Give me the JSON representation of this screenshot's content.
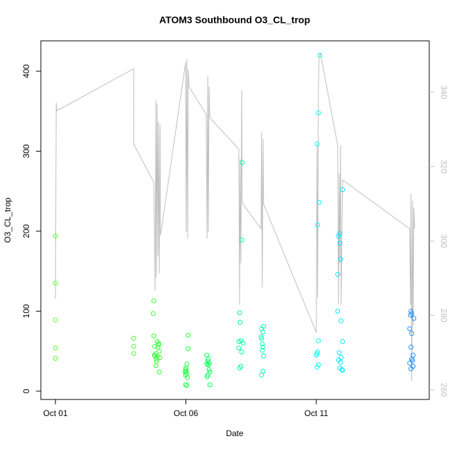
{
  "chart_data": {
    "type": "scatter",
    "title": "ATOM3 Southbound O3_CL_trop",
    "x_label": "Date",
    "y_label": "O3_CL_trop",
    "xlim": [
      -0.56,
      14.33
    ],
    "xticks": [
      {
        "value": 0,
        "label": "Oct 01"
      },
      {
        "value": 5,
        "label": "Oct 06"
      },
      {
        "value": 10,
        "label": "Oct 11"
      }
    ],
    "ylim": [
      -10.4,
      438
    ],
    "yticks": [
      0,
      100,
      200,
      300,
      400
    ],
    "y2lim": [
      257.4,
      353.8
    ],
    "y2ticks": [
      260,
      280,
      300,
      320,
      340
    ],
    "y2_color": "#bebebe",
    "series": [
      {
        "mode": "line",
        "axis": "y2",
        "color": "#bebebe",
        "x": [
          0,
          0.03,
          0.05,
          3.0,
          3.0,
          3.77,
          3.82,
          3.85,
          3.87,
          3.9,
          3.93,
          3.95,
          3.98,
          4.01,
          4.03,
          4.99,
          5.01,
          5.04,
          5.07,
          5.09,
          5.12,
          5.78,
          5.81,
          5.84,
          5.86,
          5.89,
          5.92,
          7.03,
          7.06,
          7.08,
          7.11,
          7.14,
          7.16,
          7.19,
          7.88,
          7.9,
          7.93,
          7.96,
          7.98,
          10.0,
          10.03,
          10.05,
          10.08,
          10.11,
          10.16,
          10.82,
          10.85,
          10.88,
          10.9,
          10.93,
          10.95,
          11.01,
          13.58,
          13.61,
          13.63,
          13.66,
          13.69,
          13.71,
          13.74,
          13.77
        ],
        "values": [
          284.4,
          337.2,
          335.0,
          346.3,
          326.0,
          315.8,
          286.6,
          337.8,
          290.3,
          336.8,
          295.9,
          332.2,
          291.3,
          331.3,
          301.5,
          348.0,
          302.4,
          348.9,
          300.6,
          346.1,
          341.5,
          334.0,
          300.6,
          344.3,
          302.4,
          341.5,
          333.1,
          324.7,
          282.9,
          322.0,
          294.0,
          340.6,
          310.8,
          309.9,
          303.3,
          329.4,
          287.5,
          327.5,
          309.9,
          275.4,
          326.0,
          284.7,
          340.6,
          349.9,
          350.4,
          325.7,
          282.9,
          318.2,
          294.0,
          325.7,
          282.9,
          316.4,
          303.3,
          282.9,
          312.7,
          262.4,
          310.8,
          277.3,
          308.9,
          303.3
        ]
      },
      {
        "mode": "points",
        "color": "#5cff2e",
        "x": [
          0,
          0,
          0,
          0,
          0
        ],
        "values": [
          194,
          135,
          89,
          54,
          41
        ]
      },
      {
        "mode": "points",
        "color": "#4cff33",
        "x": [
          3.0,
          3.0,
          3.0
        ],
        "values": [
          66,
          56,
          47
        ]
      },
      {
        "mode": "points",
        "color": "#33ff33",
        "x": [
          3.77,
          3.75,
          3.77,
          3.9,
          3.95,
          3.93,
          3.98,
          3.85,
          3.8,
          3.82,
          3.9,
          4.0,
          3.87,
          3.88,
          3.85,
          3.98,
          3.96,
          3.8
        ],
        "values": [
          113,
          97,
          69,
          62,
          58,
          55,
          50,
          47,
          45,
          44,
          43,
          42,
          40,
          37,
          32,
          24,
          60,
          56
        ]
      },
      {
        "mode": "points",
        "color": "#1aff40",
        "x": [
          5.09,
          5.09,
          5.04,
          5.0,
          4.99,
          5.01,
          4.97,
          5.03,
          4.99,
          5.06,
          4.99,
          5.04
        ],
        "values": [
          70,
          53,
          34,
          29,
          27,
          25,
          24,
          22,
          20,
          17,
          8,
          7
        ]
      },
      {
        "mode": "points",
        "color": "#00ff55",
        "x": [
          5.8,
          5.86,
          5.84,
          5.9,
          5.8,
          5.86,
          5.92,
          5.84,
          5.81,
          5.92,
          5.89
        ],
        "values": [
          45,
          40,
          37,
          35,
          34,
          33,
          24,
          20,
          18,
          8,
          27
        ]
      },
      {
        "mode": "points",
        "color": "#00ff99",
        "x": [
          7.16,
          7.14,
          7.06,
          7.08,
          7.11,
          7.19,
          7.03,
          7.14,
          7.11,
          7.06,
          7.03
        ],
        "values": [
          286,
          189,
          98,
          86,
          63,
          60,
          54,
          49,
          31,
          29,
          62
        ]
      },
      {
        "mode": "points",
        "color": "#00ffb3",
        "x": [
          7.98,
          7.9,
          7.96,
          7.88,
          7.9,
          7.93,
          7.96,
          7.93,
          7.98,
          7.96,
          7.9
        ],
        "values": [
          81,
          78,
          74,
          68,
          66,
          59,
          55,
          51,
          44,
          25,
          20
        ]
      },
      {
        "mode": "points",
        "color": "#00ffee",
        "x": [
          10.13,
          10.08,
          10.03,
          10.11,
          10.05,
          10.08,
          10.05,
          10.03,
          10.0,
          10.08,
          10.03
        ],
        "values": [
          420,
          348,
          309,
          236,
          208,
          63,
          49,
          47,
          45,
          33,
          30
        ]
      },
      {
        "mode": "points",
        "color": "#00e5ff",
        "x": [
          11.01,
          10.9,
          10.85,
          10.9,
          10.93,
          10.82,
          10.82,
          10.95,
          11.01,
          10.88,
          10.95,
          10.85,
          10.93,
          10.9,
          10.98,
          11.01
        ],
        "values": [
          252,
          197,
          194,
          185,
          165,
          146,
          100,
          88,
          62,
          48,
          42,
          39,
          36,
          29,
          27,
          26
        ]
      },
      {
        "mode": "points",
        "color": "#1a8cff",
        "x": [
          13.63,
          13.66,
          13.61,
          13.74,
          13.58,
          13.66,
          13.63,
          13.71,
          13.66,
          13.69,
          13.58,
          13.71,
          13.63
        ],
        "values": [
          100,
          97,
          95,
          91,
          78,
          72,
          55,
          45,
          40,
          38,
          35,
          31,
          28
        ]
      }
    ]
  }
}
